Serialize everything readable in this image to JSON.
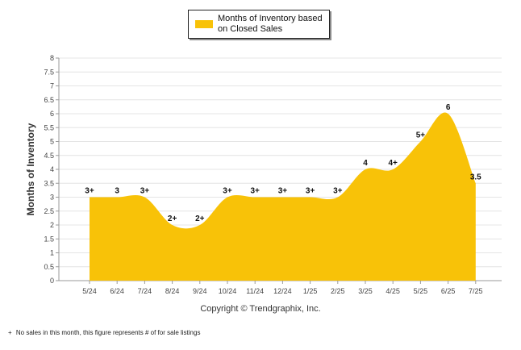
{
  "chart_data": {
    "type": "area",
    "categories": [
      "5/24",
      "6/24",
      "7/24",
      "8/24",
      "9/24",
      "10/24",
      "11/24",
      "12/24",
      "1/25",
      "2/25",
      "3/25",
      "4/25",
      "5/25",
      "6/25",
      "7/25"
    ],
    "series": [
      {
        "name": "Months of Inventory based on Closed Sales",
        "values": [
          3,
          3,
          3,
          2,
          2,
          3,
          3,
          3,
          3,
          3,
          4,
          4,
          5,
          6,
          3.5
        ],
        "labels": [
          "3+",
          "3",
          "3+",
          "2+",
          "2+",
          "3+",
          "3+",
          "3+",
          "3+",
          "3+",
          "4",
          "4+",
          "5+",
          "6",
          "3.5"
        ],
        "color": "#f8c208"
      }
    ],
    "ylabel": "Months of Inventory",
    "ylim": [
      0,
      8
    ],
    "yticks": [
      "0",
      "0.5",
      "1",
      "1.5",
      "2",
      "2.5",
      "3",
      "3.5",
      "4",
      "4.5",
      "5",
      "5.5",
      "6",
      "6.5",
      "7",
      "7.5",
      "8"
    ],
    "grid": true,
    "legend_position": "top-center"
  },
  "copyright": "Copyright © Trendgraphix, Inc.",
  "footnote": {
    "symbol": "+",
    "text": "No sales in this month, this figure represents # of for sale listings"
  }
}
